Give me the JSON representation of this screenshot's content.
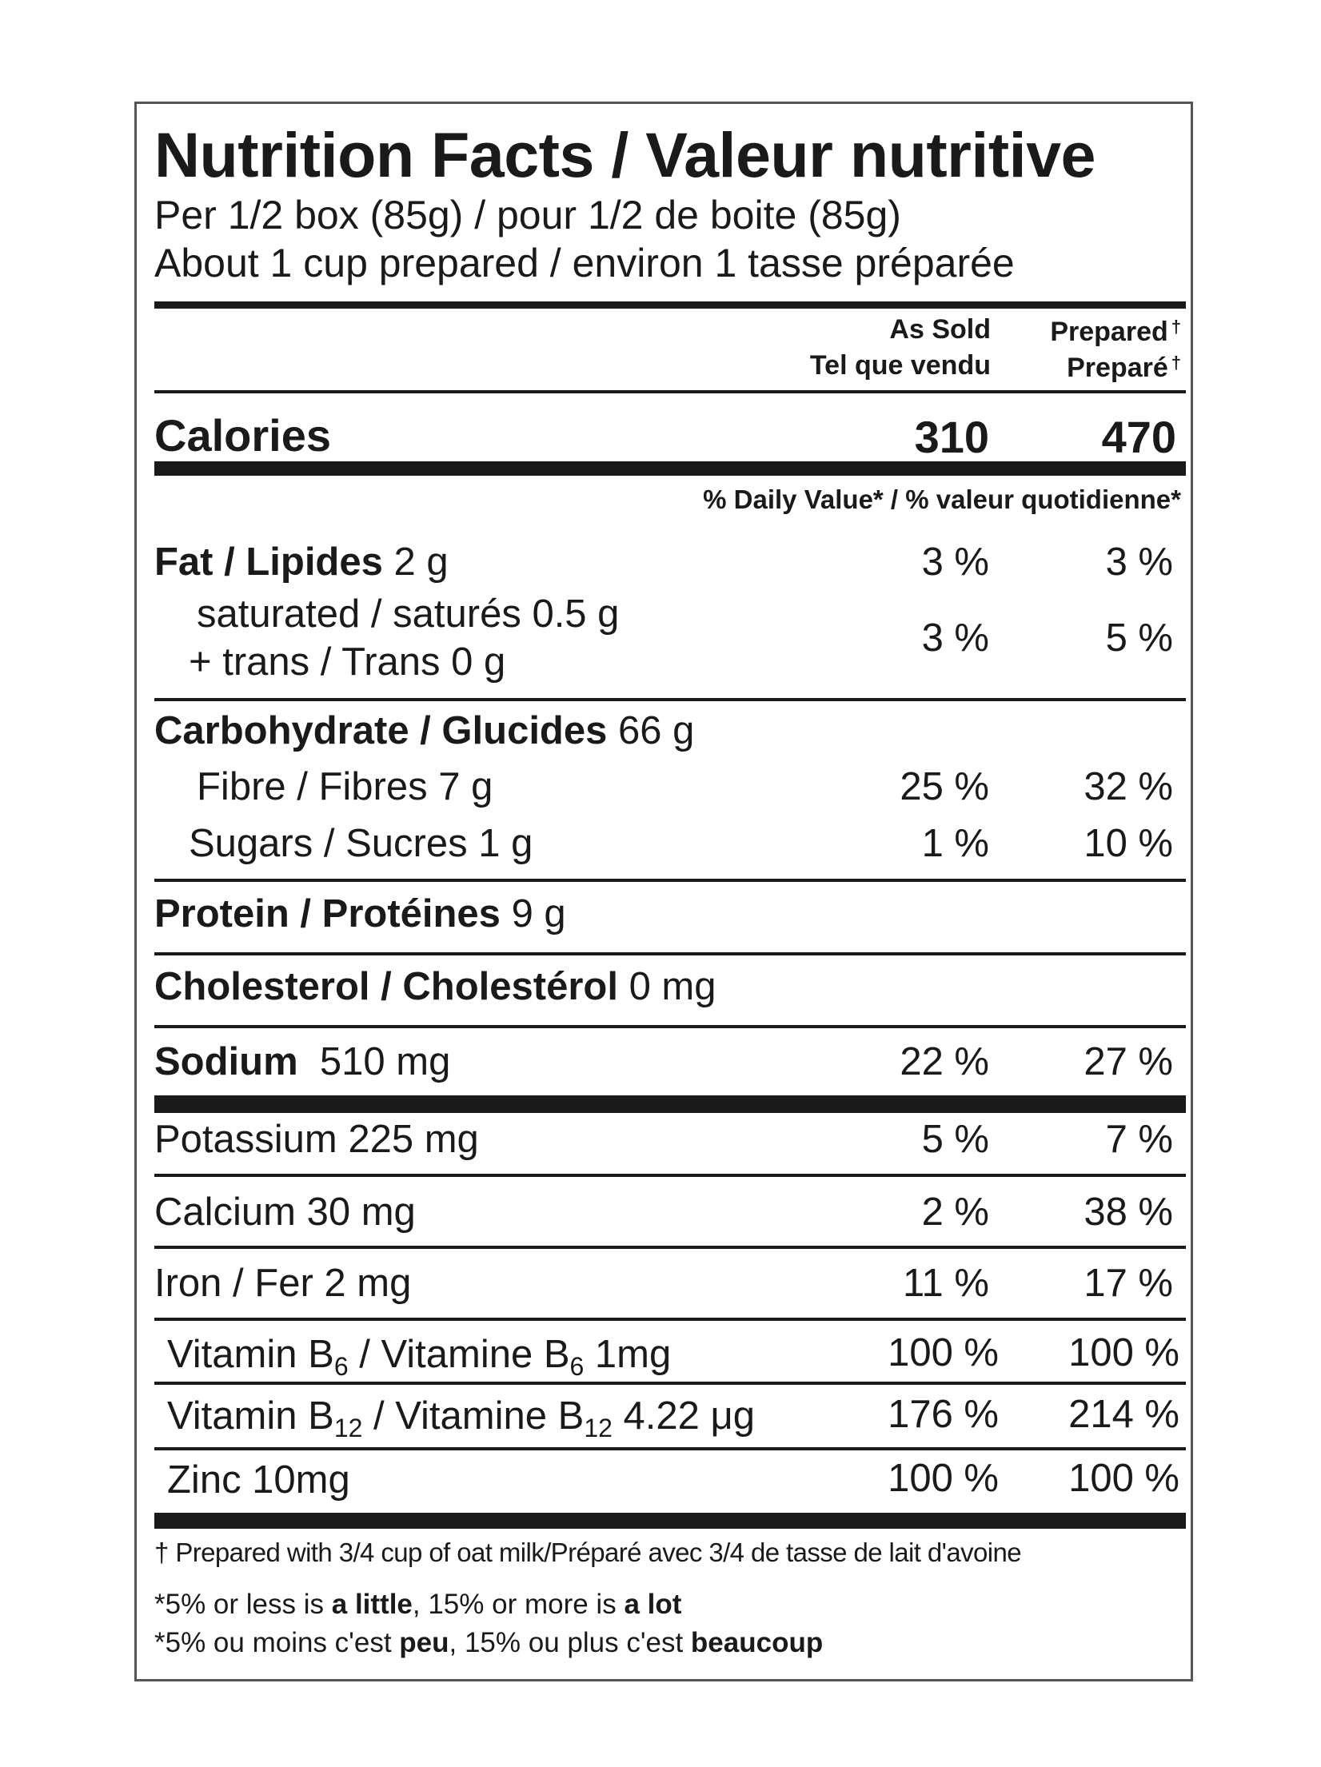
{
  "title": "Nutrition Facts / Valeur nutritive",
  "serving": {
    "line1": "Per 1/2 box (85g) / pour 1/2 de boite (85g)",
    "line2": "About 1 cup prepared / environ 1 tasse préparée"
  },
  "columns": {
    "as_sold_en": "As Sold",
    "as_sold_fr": "Tel que vendu",
    "prepared_en": "Prepared",
    "prepared_fr": "Preparé",
    "dagger": "†"
  },
  "calories": {
    "label": "Calories",
    "as_sold": "310",
    "prepared": "470"
  },
  "daily_value_header": "% Daily Value* / % valeur quotidienne*",
  "nutrients": {
    "fat": {
      "label": "Fat / Lipides",
      "amount": "2 g",
      "as_sold": "3 %",
      "prepared": "3 %"
    },
    "saturated": {
      "label": "saturated / saturés 0.5 g"
    },
    "trans": {
      "label": "+ trans / Trans 0 g"
    },
    "sat_trans": {
      "as_sold": "3 %",
      "prepared": "5 %"
    },
    "carbohydrate": {
      "label": "Carbohydrate / Glucides",
      "amount": "66 g"
    },
    "fibre": {
      "label": "Fibre / Fibres 7 g",
      "as_sold": "25 %",
      "prepared": "32 %"
    },
    "sugars": {
      "label": "Sugars / Sucres 1 g",
      "as_sold": "1 %",
      "prepared": "10 %"
    },
    "protein": {
      "label": "Protein / Protéines",
      "amount": "9 g"
    },
    "cholesterol": {
      "label": "Cholesterol / Cholestérol",
      "amount": "0 mg"
    },
    "sodium": {
      "label": "Sodium",
      "amount": "510 mg",
      "as_sold": "22 %",
      "prepared": "27 %"
    },
    "potassium": {
      "label": "Potassium 225 mg",
      "as_sold": "5 %",
      "prepared": "7 %"
    },
    "calcium": {
      "label": "Calcium 30 mg",
      "as_sold": "2 %",
      "prepared": "38 %"
    },
    "iron": {
      "label": "Iron / Fer 2 mg",
      "as_sold": "11 %",
      "prepared": "17 %"
    },
    "b6": {
      "p1": "Vitamin B",
      "sub": "6",
      "p2": " / Vitamine B",
      "sub2": "6",
      "p3": " 1mg",
      "as_sold": "100 %",
      "prepared": "100 %"
    },
    "b12": {
      "p1": "Vitamin B",
      "sub": "12",
      "p2": " / Vitamine B",
      "sub2": "12",
      "p3": " 4.22 μg",
      "as_sold": "176 %",
      "prepared": "214 %"
    },
    "zinc": {
      "label": "Zinc 10mg",
      "as_sold": "100 %",
      "prepared": "100 %"
    }
  },
  "footnotes": {
    "prepared": "† Prepared with 3/4 cup of oat milk/Préparé avec 3/4 de tasse de lait d'avoine",
    "en": {
      "a": "*5% or less is ",
      "b": "a little",
      "c": ", 15% or more is ",
      "d": "a lot"
    },
    "fr": {
      "a": "*5% ou moins c'est ",
      "b": "peu",
      "c": ", 15% ou plus c'est ",
      "d": "beaucoup"
    }
  }
}
